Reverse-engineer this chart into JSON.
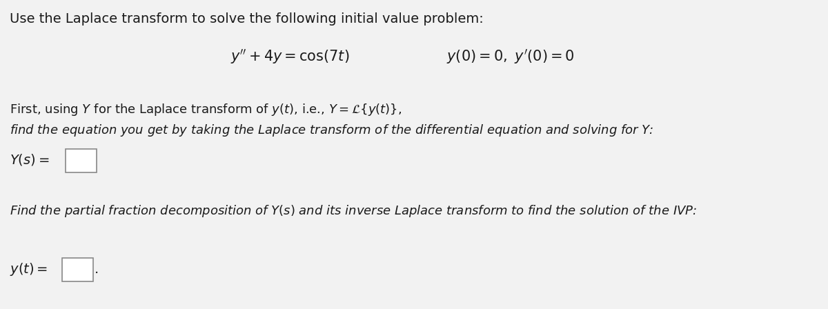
{
  "bg_color": "#f2f2f2",
  "text_color": "#1a1a1a",
  "title_line": "Use the Laplace transform to solve the following initial value problem:",
  "equation_left": "$y'' + 4y = \\cos(7t)$",
  "equation_right": "$y(0) = 0,\\ y'(0) = 0$",
  "desc_line1": "First, using $Y$ for the Laplace transform of $y(t)$, i.e., $Y = \\mathcal{L}\\{y(t)\\}$,",
  "desc_line2": "find the equation you get by taking the Laplace transform of the differential equation and solving for $Y$:",
  "label_Ys": "$Y(s) =$",
  "label_yt": "$y(t) =$",
  "partial_line": "Find the partial fraction decomposition of $Y(s)$ and its inverse Laplace transform to find the solution of the IVP:",
  "font_size_title": 14,
  "font_size_eq": 15,
  "font_size_desc": 13,
  "font_size_label": 14
}
